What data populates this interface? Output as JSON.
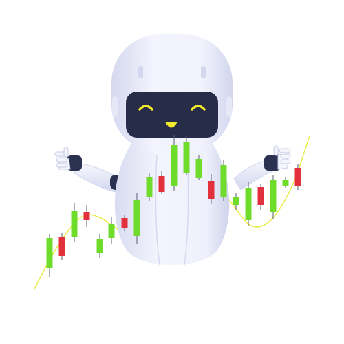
{
  "illustration": {
    "subject": "robot-mascot",
    "icons": [
      "robot-icon",
      "smile-face-icon",
      "candlestick-chart-icon",
      "trend-line-icon"
    ]
  },
  "colors": {
    "background": "#ffffff",
    "body": "#f1f2fc",
    "body_shade": "#d9dcf0",
    "visor": "#272d48",
    "face": "#f4ea2a",
    "glove": "#f4f5fb",
    "glove_cuff": "#2b3150",
    "candle_up": "#6fdc2c",
    "candle_down": "#e2303c",
    "trend_line": "#e9ec4a"
  },
  "candles": [
    {
      "dir": "up"
    },
    {
      "dir": "down"
    },
    {
      "dir": "up"
    },
    {
      "dir": "down"
    },
    {
      "dir": "up"
    },
    {
      "dir": "up"
    },
    {
      "dir": "down"
    },
    {
      "dir": "up"
    },
    {
      "dir": "up"
    },
    {
      "dir": "down"
    },
    {
      "dir": "up"
    },
    {
      "dir": "up"
    },
    {
      "dir": "up"
    },
    {
      "dir": "down"
    },
    {
      "dir": "up"
    },
    {
      "dir": "up"
    },
    {
      "dir": "up"
    },
    {
      "dir": "down"
    },
    {
      "dir": "up"
    },
    {
      "dir": "up"
    },
    {
      "dir": "down"
    }
  ]
}
